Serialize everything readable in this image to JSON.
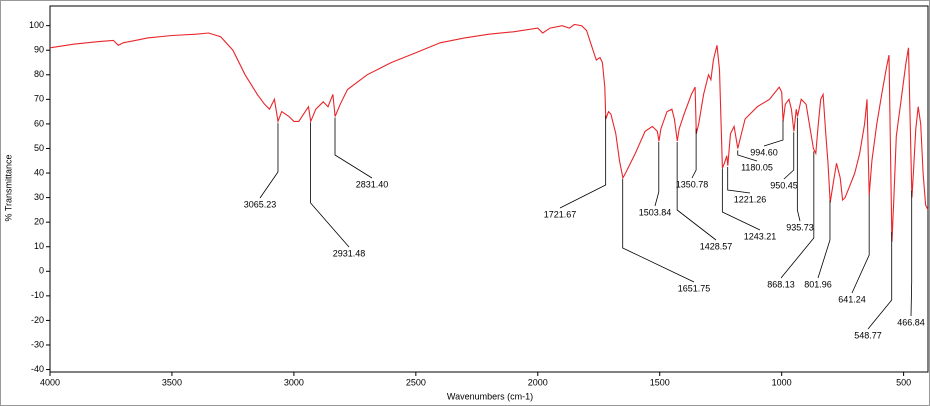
{
  "chart_data": {
    "type": "line",
    "xlabel": "Wavenumbers (cm-1)",
    "ylabel": "% Transmittance",
    "xlim": [
      4000,
      400
    ],
    "ylim": [
      -41,
      108
    ],
    "xticks": [
      4000,
      3500,
      3000,
      2500,
      2000,
      1500,
      1000,
      500
    ],
    "yticks": [
      -40,
      -30,
      -20,
      -10,
      0,
      10,
      20,
      30,
      40,
      50,
      60,
      70,
      80,
      90,
      100
    ],
    "series": [
      {
        "color": "#e8262b",
        "x": [
          4000,
          3900,
          3800,
          3740,
          3720,
          3700,
          3650,
          3600,
          3500,
          3400,
          3350,
          3300,
          3250,
          3200,
          3150,
          3120,
          3100,
          3080,
          3065,
          3050,
          3020,
          3000,
          2980,
          2960,
          2940,
          2931,
          2910,
          2880,
          2860,
          2840,
          2831,
          2810,
          2780,
          2700,
          2600,
          2500,
          2400,
          2300,
          2200,
          2100,
          2000,
          1980,
          1950,
          1900,
          1870,
          1850,
          1820,
          1800,
          1780,
          1760,
          1745,
          1735,
          1725,
          1721,
          1710,
          1700,
          1680,
          1665,
          1651,
          1640,
          1600,
          1560,
          1530,
          1510,
          1503,
          1495,
          1470,
          1450,
          1440,
          1428,
          1420,
          1400,
          1370,
          1355,
          1350,
          1340,
          1320,
          1300,
          1290,
          1280,
          1265,
          1255,
          1243,
          1235,
          1225,
          1221,
          1210,
          1195,
          1180,
          1170,
          1150,
          1100,
          1050,
          1010,
          1000,
          994,
          985,
          970,
          960,
          950,
          940,
          935,
          920,
          900,
          870,
          860,
          850,
          840,
          830,
          820,
          810,
          801,
          790,
          775,
          760,
          750,
          740,
          720,
          700,
          680,
          660,
          650,
          641,
          630,
          610,
          590,
          570,
          560,
          548,
          540,
          530,
          510,
          490,
          480,
          466,
          460,
          450,
          440,
          430,
          420,
          410,
          400
        ],
        "values": [
          91,
          92.5,
          93.5,
          94,
          92,
          93,
          94,
          95,
          96,
          96.5,
          97,
          95.5,
          90,
          80,
          72,
          68,
          66,
          70,
          61,
          65,
          63,
          61,
          61,
          64,
          67,
          61,
          66,
          69,
          67,
          72,
          63,
          68,
          74,
          80,
          85,
          89,
          93,
          95,
          96.5,
          97.5,
          99,
          97,
          99,
          100,
          99,
          100.5,
          100,
          98,
          92,
          86,
          87,
          85,
          75,
          62,
          65,
          64,
          56,
          45,
          38,
          40,
          48,
          57,
          59,
          57,
          53,
          58,
          65,
          66,
          62,
          53,
          58,
          64,
          72,
          75,
          56,
          60,
          72,
          80,
          78,
          86,
          92,
          82,
          42,
          44,
          47,
          43,
          56,
          59,
          50,
          54,
          62,
          67,
          70,
          75,
          73,
          61,
          68,
          70,
          66,
          57,
          66,
          63,
          70,
          68,
          50,
          48,
          60,
          70,
          72,
          57,
          44,
          28,
          35,
          44,
          38,
          29,
          30,
          35,
          40,
          48,
          60,
          70,
          31,
          45,
          60,
          72,
          83,
          88,
          12,
          30,
          55,
          70,
          85,
          91,
          30,
          40,
          58,
          67,
          60,
          40,
          27,
          25
        ]
      }
    ],
    "annotations": [
      {
        "x": 3065.23,
        "label": "3065.23"
      },
      {
        "x": 2931.48,
        "label": "2931.48"
      },
      {
        "x": 2831.4,
        "label": "2831.40"
      },
      {
        "x": 1721.67,
        "label": "1721.67"
      },
      {
        "x": 1651.75,
        "label": "1651.75"
      },
      {
        "x": 1503.84,
        "label": "1503.84"
      },
      {
        "x": 1428.57,
        "label": "1428.57"
      },
      {
        "x": 1350.78,
        "label": "1350.78"
      },
      {
        "x": 1243.21,
        "label": "1243.21"
      },
      {
        "x": 1221.26,
        "label": "1221.26"
      },
      {
        "x": 1180.05,
        "label": "1180.05"
      },
      {
        "x": 994.6,
        "label": "994.60"
      },
      {
        "x": 950.45,
        "label": "950.45"
      },
      {
        "x": 935.73,
        "label": "935.73"
      },
      {
        "x": 868.13,
        "label": "868.13"
      },
      {
        "x": 801.96,
        "label": "801.96"
      },
      {
        "x": 641.24,
        "label": "641.24"
      },
      {
        "x": 548.77,
        "label": "548.77"
      },
      {
        "x": 466.84,
        "label": "466.84"
      }
    ]
  }
}
